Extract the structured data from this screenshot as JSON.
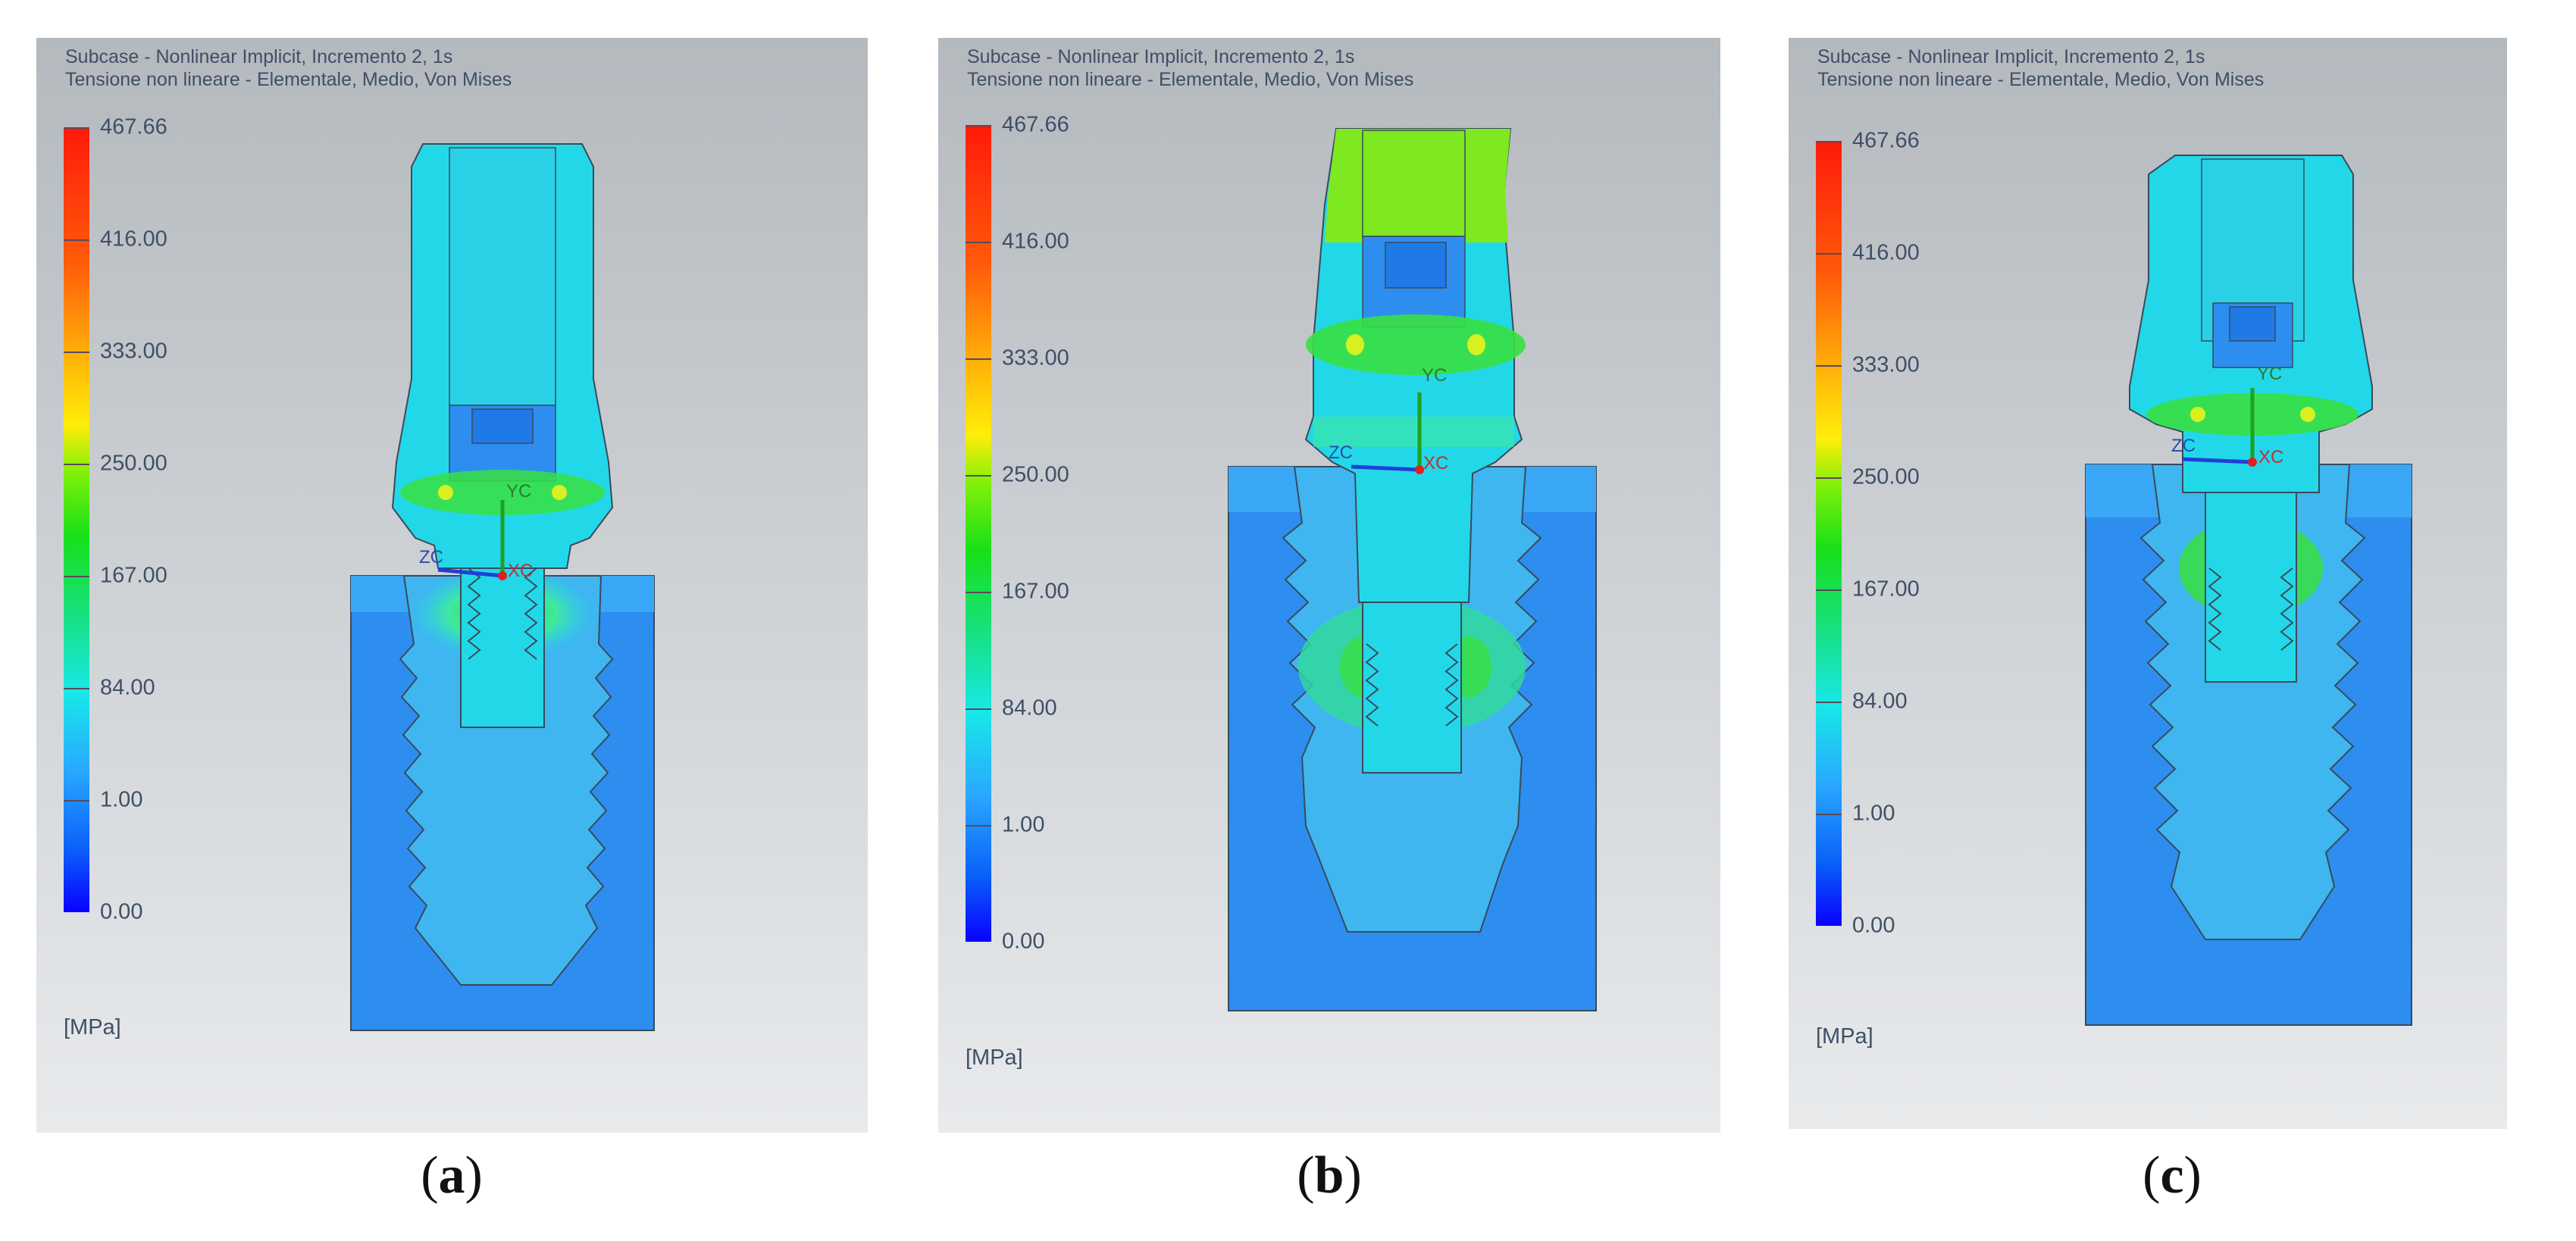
{
  "panels": [
    {
      "id": "a",
      "header_line1": "Subcase - Nonlinear Implicit, Incremento 2, 1s",
      "header_line2": "Tensione non lineare - Elementale, Medio, Von Mises",
      "unit": "[MPa]",
      "caption_letter": "a",
      "axis_labels": {
        "y": "YC",
        "z": "ZC",
        "x": "XC"
      }
    },
    {
      "id": "b",
      "header_line1": "Subcase - Nonlinear Implicit, Incremento 2, 1s",
      "header_line2": "Tensione non lineare - Elementale, Medio, Von Mises",
      "unit": "[MPa]",
      "caption_letter": "b",
      "axis_labels": {
        "y": "YC",
        "z": "ZC",
        "x": "XC"
      }
    },
    {
      "id": "c",
      "header_line1": "Subcase - Nonlinear Implicit, Incremento 2, 1s",
      "header_line2": "Tensione non lineare - Elementale, Medio, Von Mises",
      "unit": "[MPa]",
      "caption_letter": "c",
      "axis_labels": {
        "y": "YC",
        "z": "ZC",
        "x": "XC"
      }
    }
  ],
  "scale_ticks": [
    "467.66",
    "416.00",
    "333.00",
    "250.00",
    "167.00",
    "84.00",
    "1.00",
    "0.00"
  ],
  "colors": {
    "background_top": "#b4b9be",
    "background_bottom": "#e8eaec",
    "bone": "#2d8ef0",
    "implant": "#22d8e8",
    "stress_green": "#30e030",
    "stress_yellow": "#d8f020",
    "scale_max": "#ff1a0a",
    "scale_min": "#0a00ff"
  }
}
